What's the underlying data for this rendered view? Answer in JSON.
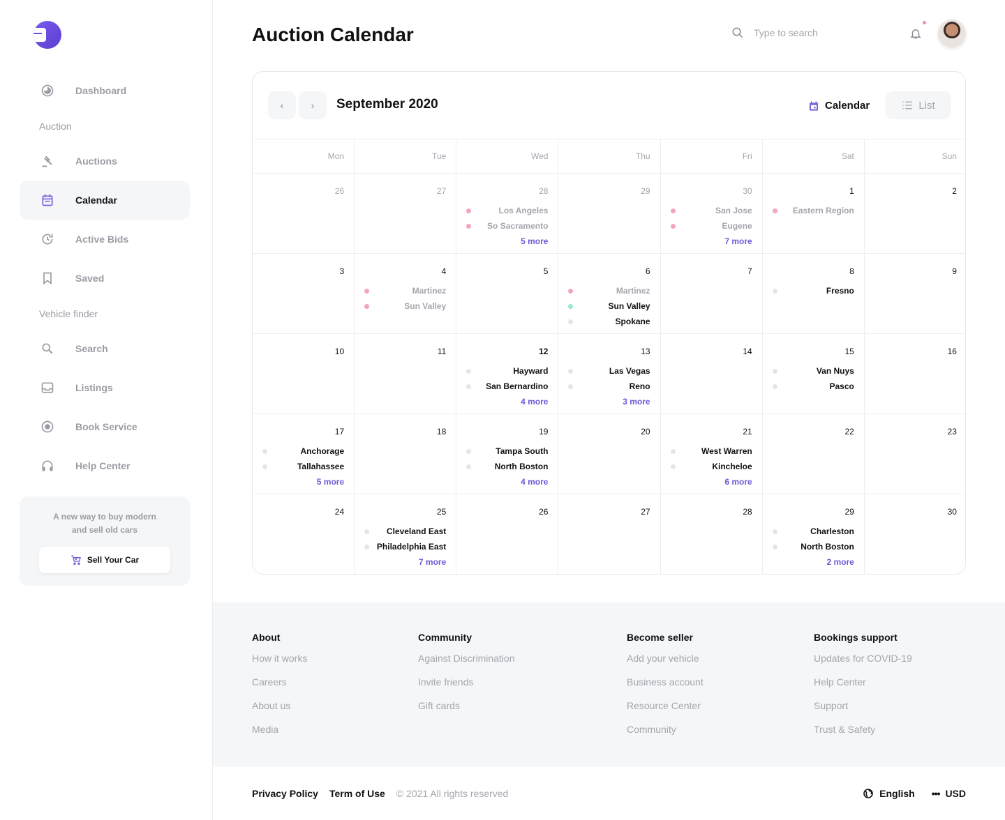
{
  "sidebar": {
    "items": [
      {
        "label": "Dashboard",
        "icon": "dashboard-icon"
      },
      {
        "label": "Auctions",
        "icon": "gavel-icon"
      },
      {
        "label": "Calendar",
        "icon": "calendar-icon",
        "active": true
      },
      {
        "label": "Active Bids",
        "icon": "history-icon"
      },
      {
        "label": "Saved",
        "icon": "bookmark-icon"
      },
      {
        "label": "Search",
        "icon": "search-icon"
      },
      {
        "label": "Listings",
        "icon": "inbox-icon"
      },
      {
        "label": "Book Service",
        "icon": "radio-icon"
      },
      {
        "label": "Help Center",
        "icon": "headset-icon"
      }
    ],
    "sections": [
      "Auction",
      "Vehicle finder"
    ],
    "promo": {
      "text": "A new way to buy modern and sell old cars",
      "button": "Sell Your Car"
    }
  },
  "header": {
    "title": "Auction Calendar",
    "search_placeholder": "Type to search"
  },
  "calendar": {
    "month": "September 2020",
    "view_calendar": "Calendar",
    "view_list": "List",
    "weekdays": [
      "Mon",
      "Tue",
      "Wed",
      "Thu",
      "Fri",
      "Sat",
      "Sun"
    ],
    "days": [
      {
        "n": "26",
        "other": true
      },
      {
        "n": "27",
        "other": true
      },
      {
        "n": "28",
        "other": true,
        "events": [
          {
            "name": "Los Angeles",
            "status": "past"
          },
          {
            "name": "So Sacramento",
            "status": "past"
          }
        ],
        "more": "5 more"
      },
      {
        "n": "29",
        "other": true
      },
      {
        "n": "30",
        "other": true,
        "events": [
          {
            "name": "San Jose",
            "status": "past"
          },
          {
            "name": "Eugene",
            "status": "past"
          }
        ],
        "more": "7 more"
      },
      {
        "n": "1",
        "events": [
          {
            "name": "Eastern Region",
            "status": "past"
          }
        ]
      },
      {
        "n": "2"
      },
      {
        "n": "3"
      },
      {
        "n": "4",
        "events": [
          {
            "name": "Martinez",
            "status": "past"
          },
          {
            "name": "Sun Valley",
            "status": "past"
          }
        ]
      },
      {
        "n": "5"
      },
      {
        "n": "6",
        "events": [
          {
            "name": "Martinez",
            "status": "past"
          },
          {
            "name": "Sun Valley",
            "status": "live"
          },
          {
            "name": "Spokane",
            "status": "upcoming"
          }
        ]
      },
      {
        "n": "7"
      },
      {
        "n": "8",
        "events": [
          {
            "name": "Fresno",
            "status": "upcoming"
          }
        ]
      },
      {
        "n": "9"
      },
      {
        "n": "10"
      },
      {
        "n": "11"
      },
      {
        "n": "12",
        "today": true,
        "events": [
          {
            "name": "Hayward",
            "status": "upcoming"
          },
          {
            "name": "San Bernardino",
            "status": "upcoming"
          }
        ],
        "more": "4 more"
      },
      {
        "n": "13",
        "events": [
          {
            "name": "Las Vegas",
            "status": "upcoming"
          },
          {
            "name": "Reno",
            "status": "upcoming"
          }
        ],
        "more": "3 more"
      },
      {
        "n": "14"
      },
      {
        "n": "15",
        "events": [
          {
            "name": "Van Nuys",
            "status": "upcoming"
          },
          {
            "name": "Pasco",
            "status": "upcoming"
          }
        ]
      },
      {
        "n": "16"
      },
      {
        "n": "17",
        "events": [
          {
            "name": "Anchorage",
            "status": "upcoming"
          },
          {
            "name": "Tallahassee",
            "status": "upcoming"
          }
        ],
        "more": "5 more"
      },
      {
        "n": "18"
      },
      {
        "n": "19",
        "events": [
          {
            "name": "Tampa South",
            "status": "upcoming"
          },
          {
            "name": "North Boston",
            "status": "upcoming"
          }
        ],
        "more": "4 more"
      },
      {
        "n": "20"
      },
      {
        "n": "21",
        "events": [
          {
            "name": "West Warren",
            "status": "upcoming"
          },
          {
            "name": "Kincheloe",
            "status": "upcoming"
          }
        ],
        "more": "6 more"
      },
      {
        "n": "22"
      },
      {
        "n": "23"
      },
      {
        "n": "24"
      },
      {
        "n": "25",
        "events": [
          {
            "name": "Cleveland East",
            "status": "upcoming"
          },
          {
            "name": "Philadelphia East",
            "status": "upcoming"
          }
        ],
        "more": "7 more"
      },
      {
        "n": "26"
      },
      {
        "n": "27"
      },
      {
        "n": "28"
      },
      {
        "n": "29",
        "events": [
          {
            "name": "Charleston",
            "status": "upcoming"
          },
          {
            "name": "North Boston",
            "status": "upcoming"
          }
        ],
        "more": "2 more"
      },
      {
        "n": "30"
      }
    ]
  },
  "footer": {
    "columns": [
      {
        "title": "About",
        "links": [
          "How it works",
          "Careers",
          "About us",
          "Media"
        ]
      },
      {
        "title": "Community",
        "links": [
          "Against Discrimination",
          "Invite friends",
          "Gift cards"
        ]
      },
      {
        "title": "Become seller",
        "links": [
          "Add your vehicle",
          "Business account",
          "Resource Center",
          "Community"
        ]
      },
      {
        "title": "Bookings support",
        "links": [
          "Updates for COVID-19",
          "Help Center",
          "Support",
          "Trust & Safety"
        ]
      }
    ],
    "privacy": "Privacy Policy",
    "terms": "Term of Use",
    "copyright": "© 2021 All rights reserved",
    "language": "English",
    "currency": "USD"
  },
  "colors": {
    "accent": "#6c5ad6",
    "past": "#f2a5bd",
    "live": "#9de8cf",
    "upcoming": "#e4e5e8"
  }
}
